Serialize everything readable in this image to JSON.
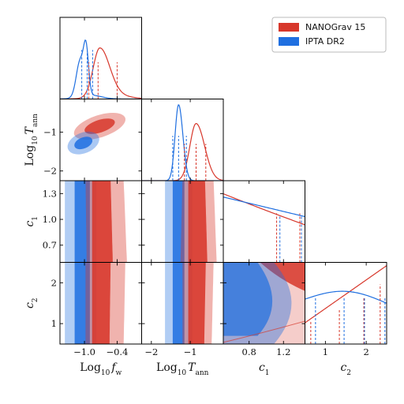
{
  "chart_data": {
    "type": "corner",
    "colors": {
      "nanograv": "#d7372b",
      "ipta": "#1f6fe0"
    },
    "legend": {
      "placement": "top-right",
      "entries": [
        {
          "label": "NANOGrav 15",
          "color": "#d7372b"
        },
        {
          "label": "IPTA DR2",
          "color": "#1f6fe0"
        }
      ]
    },
    "parameters": [
      {
        "key": "logfw",
        "label_main": "Log",
        "label_sub": "10",
        "label_tail": "f",
        "label_tail_sub": "w",
        "range": [
          -1.45,
          0.05
        ],
        "ticks": [
          -1.0,
          -0.4
        ],
        "tick_labels": [
          "−1.0",
          "−0.4"
        ]
      },
      {
        "key": "logT",
        "label_main": "Log",
        "label_sub": "10",
        "label_tail": "T",
        "label_tail_sub": "ann",
        "range": [
          -2.25,
          -0.15
        ],
        "ticks": [
          -2,
          -1
        ],
        "tick_labels": [
          "−2",
          "−1"
        ]
      },
      {
        "key": "c1",
        "label_main": "c",
        "label_sub": "1",
        "label_tail": "",
        "label_tail_sub": "",
        "range": [
          0.5,
          1.45
        ],
        "ticks": [
          0.7,
          1.0,
          1.3
        ],
        "tick_labels": [
          "0.7",
          "1.0",
          "1.3"
        ],
        "ticks_x": [
          0.8,
          1.2
        ],
        "tick_labels_x": [
          "0.8",
          "1.2"
        ]
      },
      {
        "key": "c2",
        "label_main": "c",
        "label_sub": "2",
        "label_tail": "",
        "label_tail_sub": "",
        "range": [
          0.5,
          2.5
        ],
        "ticks": [
          1,
          2
        ],
        "tick_labels": [
          "1",
          "2"
        ]
      }
    ],
    "marginals": {
      "logfw": {
        "nanograv": {
          "mode": -0.75,
          "quantiles": [
            -0.92,
            -0.75,
            -0.4
          ]
        },
        "ipta": {
          "mode": -0.95,
          "quantiles": [
            -1.05,
            -0.95,
            -0.85
          ]
        }
      },
      "logT": {
        "nanograv": {
          "mode": -0.85,
          "quantiles": [
            -1.15,
            -0.85,
            -0.6
          ]
        },
        "ipta": {
          "mode": -1.3,
          "quantiles": [
            -1.45,
            -1.3,
            -1.1
          ]
        }
      },
      "c1": {
        "nanograv": {
          "quantiles": [
            1.12,
            1.39
          ]
        },
        "ipta": {
          "quantiles": [
            1.14,
            1.39
          ]
        }
      },
      "c2": {
        "nanograv": {
          "quantiles": [
            0.7,
            1.4,
            2.0,
            2.4
          ]
        },
        "ipta": {
          "quantiles": [
            0.7,
            1.4,
            1.9,
            2.4
          ]
        }
      }
    }
  }
}
